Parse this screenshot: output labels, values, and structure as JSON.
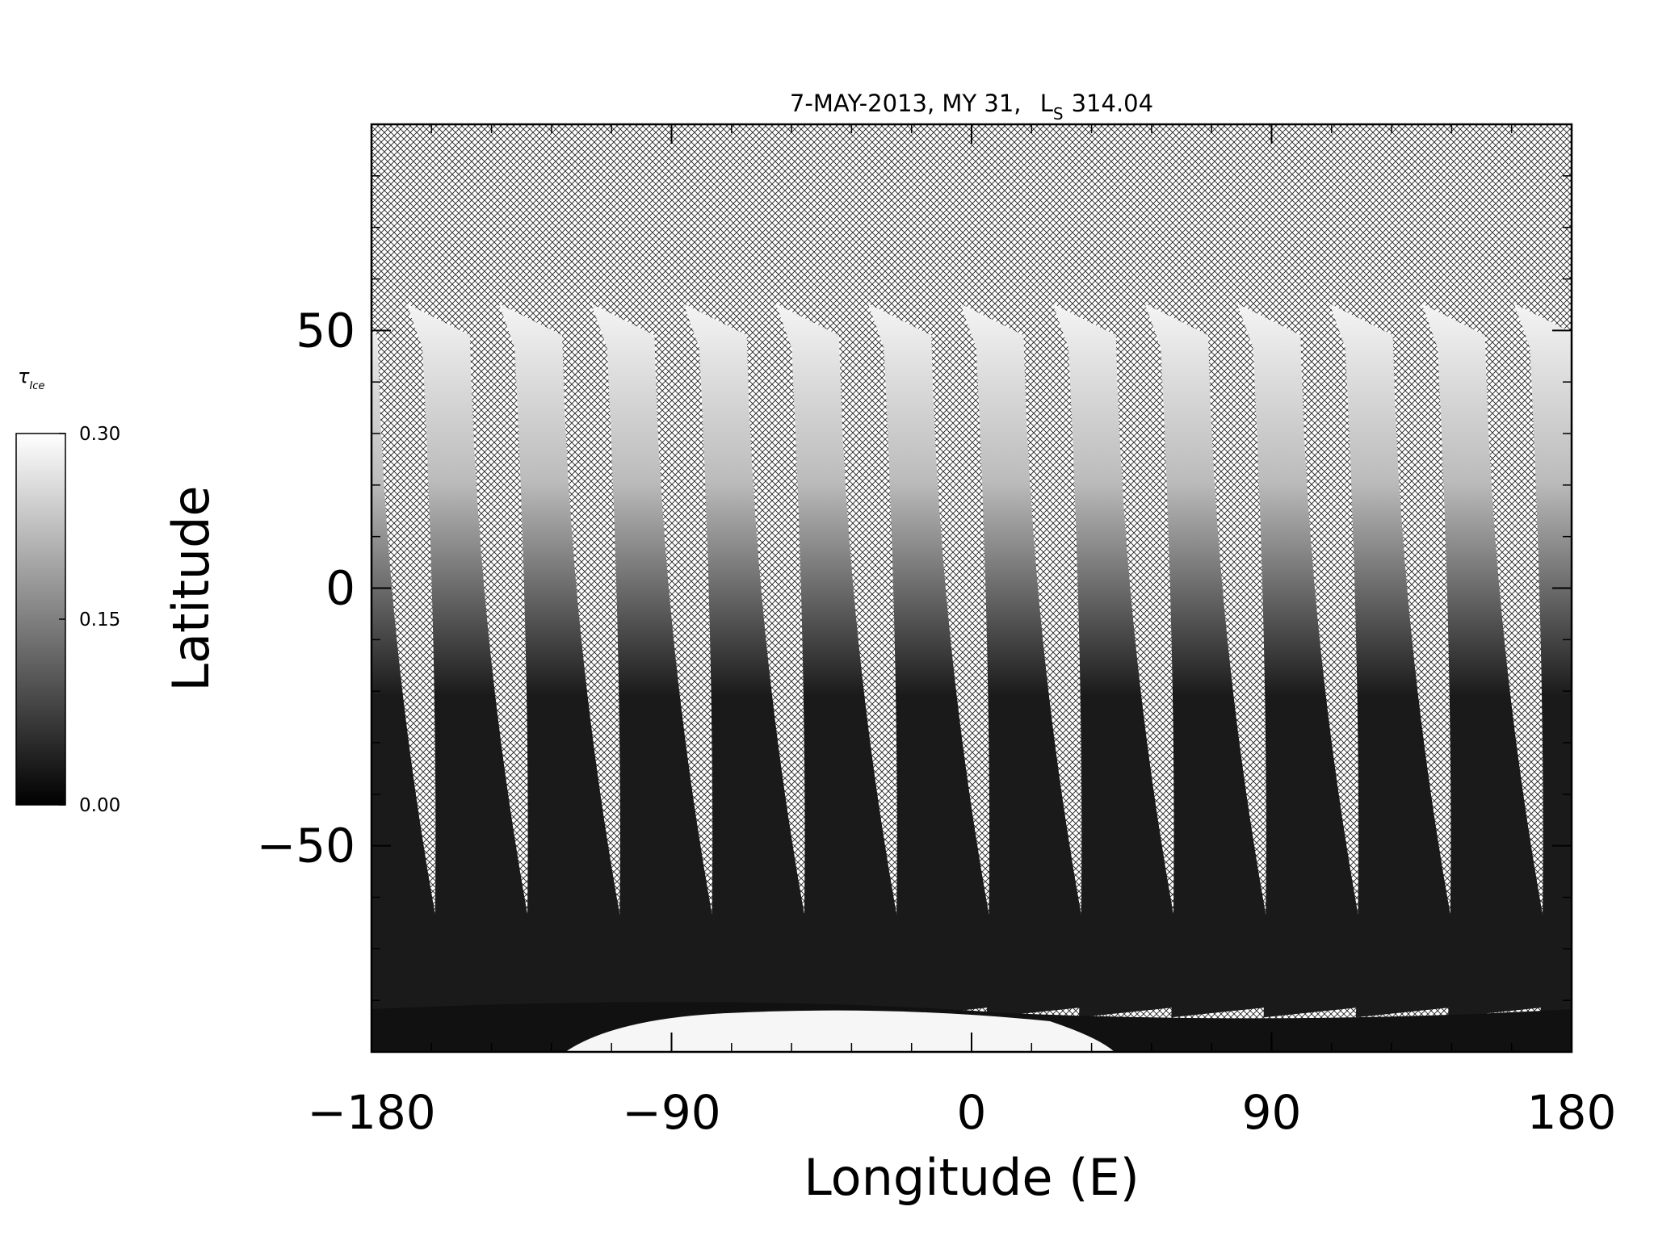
{
  "chart_data": {
    "type": "map",
    "title": "7-MAY-2013, MY 31,",
    "title_symbol": "L",
    "title_symbol_subscript": "S",
    "title_value": "314.04",
    "x_label": "Longitude (E)",
    "y_label": "Latitude",
    "xlim": [
      -180,
      180
    ],
    "xticks": [
      {
        "value": -180,
        "label": "−180"
      },
      {
        "value": -90,
        "label": "−90"
      },
      0,
      90,
      180
    ],
    "ylim": [
      -90,
      90
    ],
    "yticks": [
      {
        "value": -50,
        "label": "−50"
      },
      0,
      50
    ],
    "colorbar": {
      "label": "τ",
      "label_subscript": "Ice",
      "colors": [
        "#000000",
        "#ffffff"
      ],
      "lim": [
        0,
        0.3
      ],
      "ticks": [
        {
          "value": 0,
          "label": "0.00"
        },
        {
          "value": 0.15,
          "label": "0.15"
        },
        {
          "value": 0.3,
          "label": "0.30"
        }
      ]
    }
  }
}
